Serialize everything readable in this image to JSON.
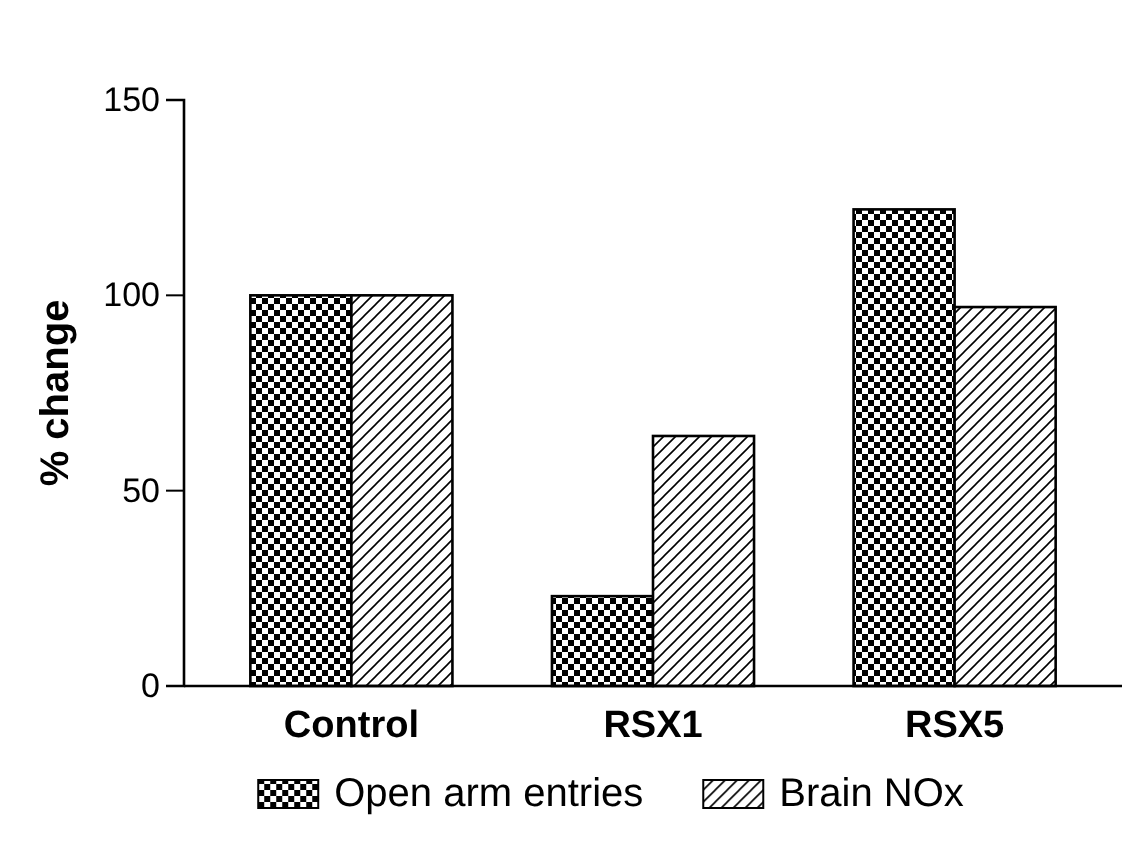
{
  "chart_data": {
    "type": "bar",
    "ylabel": "% change",
    "categories": [
      "Control",
      "RSX1",
      "RSX5"
    ],
    "series": [
      {
        "name": "Open arm entries",
        "color": "#000000",
        "values": [
          100,
          23,
          122
        ]
      },
      {
        "name": "Brain NOx",
        "color": "#000000",
        "values": [
          100,
          64,
          97
        ]
      }
    ],
    "ylim": [
      0,
      150
    ],
    "yticks": [
      0,
      50,
      100,
      150
    ],
    "grid": false,
    "legend": "bottom"
  }
}
